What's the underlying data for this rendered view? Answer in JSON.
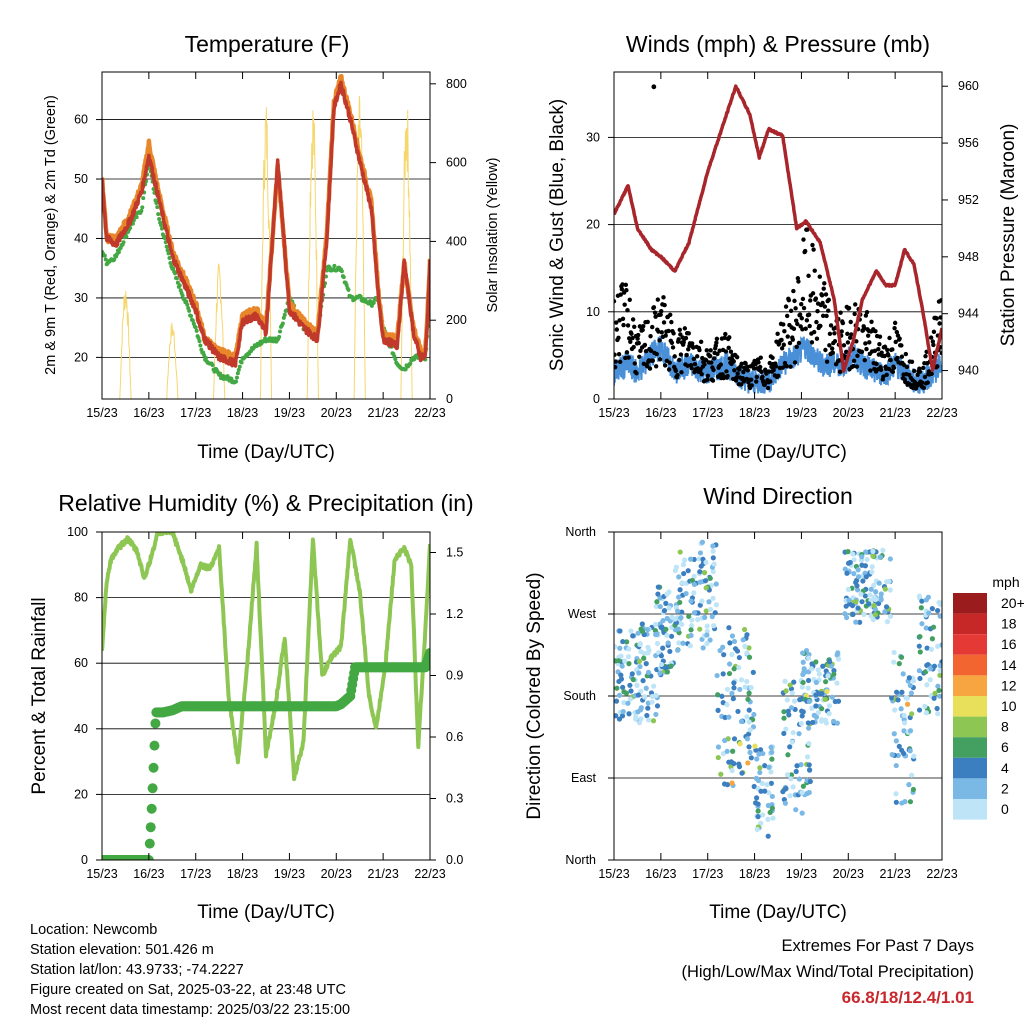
{
  "x_ticks": [
    "15/23",
    "16/23",
    "17/23",
    "18/23",
    "19/23",
    "20/23",
    "21/23",
    "22/23"
  ],
  "info": {
    "location": "Location: Newcomb",
    "elevation": "Station elevation: 501.426 m",
    "latlon": "Station lat/lon: 43.9733; -74.2227",
    "created": "Figure created on Sat, 2025-03-22, at 23:48 UTC",
    "recent": "Most recent data timestamp: 2025/03/22 23:15:00"
  },
  "extremes": {
    "title": "Extremes For Past 7 Days",
    "subtitle": "(High/Low/Max Wind/Total Precipitation)",
    "values": "66.8/18/12.4/1.01",
    "color": "#c8282d"
  },
  "chart_data": [
    {
      "id": "temperature",
      "type": "line",
      "title": "Temperature (F)",
      "xlabel": "Time (Day/UTC)",
      "ylabel": "2m & 9m T (Red, Orange) & 2m Td (Green)",
      "ylabel_right": "Solar Insolation (Yellow)",
      "ylim": [
        13,
        68
      ],
      "yticks": [
        20,
        30,
        40,
        50,
        60
      ],
      "y2lim": [
        0,
        830
      ],
      "y2ticks": [
        0,
        200,
        400,
        600,
        800
      ],
      "x": [
        0,
        0.1,
        0.3,
        0.6,
        0.85,
        1.0,
        1.2,
        1.5,
        2.0,
        2.1,
        2.2,
        2.5,
        2.85,
        3.0,
        3.3,
        3.5,
        3.75,
        4.0,
        4.3,
        4.6,
        4.8,
        4.95,
        5.1,
        5.3,
        5.5,
        5.75,
        5.9,
        6.0,
        6.3,
        6.45,
        6.65,
        6.8,
        6.9,
        6.97,
        7.0
      ],
      "series": [
        {
          "role": "2m T",
          "color": "#c0392b",
          "values": [
            50,
            40,
            39,
            43,
            48,
            54,
            47,
            37,
            28,
            25,
            23,
            20,
            19,
            26,
            27,
            24,
            53,
            28,
            25,
            23,
            40,
            62,
            66,
            60,
            53,
            45,
            30,
            23,
            22,
            36,
            24,
            20,
            20,
            30,
            37
          ]
        },
        {
          "role": "9m T",
          "color": "#e8862a",
          "values": [
            50,
            40,
            40,
            44,
            49,
            56,
            48,
            38,
            29,
            26,
            23,
            21,
            20,
            27,
            28,
            25,
            52,
            29,
            26,
            24,
            41,
            63,
            67,
            61,
            54,
            46,
            31,
            24,
            23,
            36,
            25,
            21,
            21,
            31,
            36
          ]
        },
        {
          "role": "2m Td",
          "color": "#43a843",
          "values": [
            38,
            36,
            37,
            42,
            45,
            53,
            44,
            35,
            25,
            22,
            20,
            17,
            16,
            20,
            22,
            23,
            23,
            30,
            25,
            24,
            35,
            35,
            35,
            30,
            30,
            29,
            30,
            25,
            19,
            18,
            20,
            20,
            20,
            26,
            33
          ]
        },
        {
          "role": "Solar",
          "color": "#f5d76e",
          "axis": "right",
          "x": [
            0.4,
            0.5,
            0.6,
            1.4,
            1.5,
            1.6,
            2.4,
            2.5,
            2.6,
            3.4,
            3.5,
            3.6,
            4.4,
            4.5,
            4.6,
            5.4,
            5.5,
            5.6,
            6.4,
            6.5,
            6.6
          ],
          "values": [
            0,
            300,
            0,
            0,
            200,
            0,
            0,
            350,
            0,
            0,
            770,
            0,
            0,
            780,
            0,
            0,
            780,
            0,
            0,
            780,
            0
          ]
        }
      ]
    },
    {
      "id": "winds",
      "type": "line",
      "title": "Winds (mph) & Pressure (mb)",
      "xlabel": "Time (Day/UTC)",
      "ylabel": "Sonic Wind & Gust (Blue, Black)",
      "ylabel_right": "Station Pressure (Maroon)",
      "ylim": [
        0,
        37.5
      ],
      "yticks": [
        0,
        10,
        20,
        30
      ],
      "y2lim": [
        938.0,
        961.0
      ],
      "y2ticks": [
        940,
        944,
        948,
        952,
        956,
        960
      ],
      "x": [
        0,
        0.3,
        0.5,
        0.8,
        1.0,
        1.3,
        1.6,
        2.0,
        2.4,
        2.6,
        2.9,
        3.1,
        3.3,
        3.6,
        3.9,
        4.1,
        4.4,
        4.7,
        4.9,
        5.1,
        5.3,
        5.6,
        5.8,
        6.0,
        6.2,
        6.4,
        6.6,
        6.8,
        7.0
      ],
      "series": [
        {
          "role": "Pressure",
          "color": "#a8262b",
          "axis": "right",
          "values": [
            951,
            953,
            950,
            948.5,
            948,
            947,
            949,
            954,
            958,
            960,
            958,
            955,
            957,
            956.5,
            950,
            950.5,
            949,
            945,
            940,
            942,
            945,
            947,
            946,
            946,
            948.5,
            947.5,
            944,
            940,
            943
          ]
        },
        {
          "role": "Wind",
          "color": "#4a90d9",
          "values": [
            3,
            4,
            3,
            5,
            6,
            3,
            4,
            3,
            4,
            3,
            2,
            2,
            2,
            4,
            5,
            6,
            4,
            4,
            4,
            5,
            4,
            3,
            3,
            4,
            3,
            2,
            2,
            3,
            4
          ]
        },
        {
          "role": "Gust",
          "color": "#000000",
          "values": [
            12,
            14,
            8,
            10,
            13,
            8,
            9,
            6,
            8,
            5,
            4,
            5,
            4,
            10,
            14,
            20,
            15,
            10,
            10,
            12,
            11,
            8,
            7,
            9,
            6,
            4,
            4,
            8,
            16
          ]
        }
      ]
    },
    {
      "id": "humidity",
      "type": "line",
      "title": "Relative Humidity (%) & Precipitation (in)",
      "xlabel": "Time (Day/UTC)",
      "ylabel": "Percent & Total Rainfall",
      "ylim": [
        0,
        100
      ],
      "yticks": [
        0,
        20,
        40,
        60,
        80,
        100
      ],
      "y2lim": [
        0,
        1.6
      ],
      "y2ticks": [
        "0.0",
        "0.3",
        "0.6",
        "0.9",
        "1.2",
        "1.5"
      ],
      "x": [
        0,
        0.1,
        0.2,
        0.35,
        0.55,
        0.75,
        0.9,
        1.0,
        1.2,
        1.5,
        1.75,
        1.9,
        2.1,
        2.3,
        2.5,
        2.7,
        2.9,
        3.1,
        3.3,
        3.5,
        3.7,
        3.9,
        4.1,
        4.3,
        4.5,
        4.7,
        4.9,
        5.1,
        5.3,
        5.5,
        5.7,
        5.85,
        6.05,
        6.25,
        6.45,
        6.6,
        6.75,
        6.9,
        7.0
      ],
      "series": [
        {
          "role": "RH",
          "color": "#8dc653",
          "values": [
            64,
            85,
            92,
            95,
            98,
            94,
            86,
            90,
            100,
            100,
            90,
            82,
            90,
            89,
            95,
            50,
            30,
            60,
            96,
            32,
            47,
            68,
            25,
            36,
            98,
            56,
            62,
            65,
            98,
            82,
            50,
            40,
            60,
            92,
            95,
            90,
            35,
            70,
            96
          ]
        },
        {
          "role": "Precip",
          "color": "#43a843",
          "axis": "right",
          "x": [
            0,
            1.0,
            1.05,
            1.1,
            1.15,
            1.3,
            1.5,
            1.7,
            2.0,
            3.0,
            4.0,
            5.0,
            5.1,
            5.3,
            5.4,
            6.0,
            6.9,
            7.0
          ],
          "values": [
            0,
            0,
            0.2,
            0.45,
            0.72,
            0.72,
            0.73,
            0.75,
            0.75,
            0.75,
            0.75,
            0.75,
            0.76,
            0.8,
            0.94,
            0.94,
            0.94,
            1.01
          ]
        }
      ]
    },
    {
      "id": "direction",
      "type": "scatter",
      "title": "Wind Direction",
      "xlabel": "Time (Day/UTC)",
      "ylabel": "Direction (Colored By Speed)",
      "ylim": [
        0,
        360
      ],
      "yticks": [
        "North",
        "East",
        "South",
        "West",
        "North"
      ],
      "legend": {
        "title": "mph",
        "labels": [
          "20+",
          "18",
          "16",
          "14",
          "12",
          "10",
          "8",
          "6",
          "4",
          "2",
          "0"
        ],
        "colors": [
          "#9b1c1c",
          "#c62828",
          "#e53935",
          "#f26430",
          "#f7a540",
          "#e8df5a",
          "#8dc653",
          "#43a060",
          "#3c7fc0",
          "#7ab8e6",
          "#bde4f7"
        ]
      },
      "clusters": [
        {
          "x": [
            0,
            1.0
          ],
          "y": [
            150,
            260
          ]
        },
        {
          "x": [
            0.9,
            1.4
          ],
          "y": [
            200,
            300
          ]
        },
        {
          "x": [
            1.3,
            2.2
          ],
          "y": [
            230,
            350
          ]
        },
        {
          "x": [
            2.2,
            3.0
          ],
          "y": [
            80,
            260
          ]
        },
        {
          "x": [
            3.0,
            3.4
          ],
          "y": [
            20,
            130
          ]
        },
        {
          "x": [
            3.6,
            4.2
          ],
          "y": [
            50,
            200
          ]
        },
        {
          "x": [
            4.0,
            4.8
          ],
          "y": [
            150,
            230
          ]
        },
        {
          "x": [
            4.9,
            5.9
          ],
          "y": [
            260,
            340
          ]
        },
        {
          "x": [
            5.9,
            6.4
          ],
          "y": [
            60,
            230
          ]
        },
        {
          "x": [
            6.5,
            7.0
          ],
          "y": [
            160,
            290
          ]
        }
      ]
    }
  ]
}
